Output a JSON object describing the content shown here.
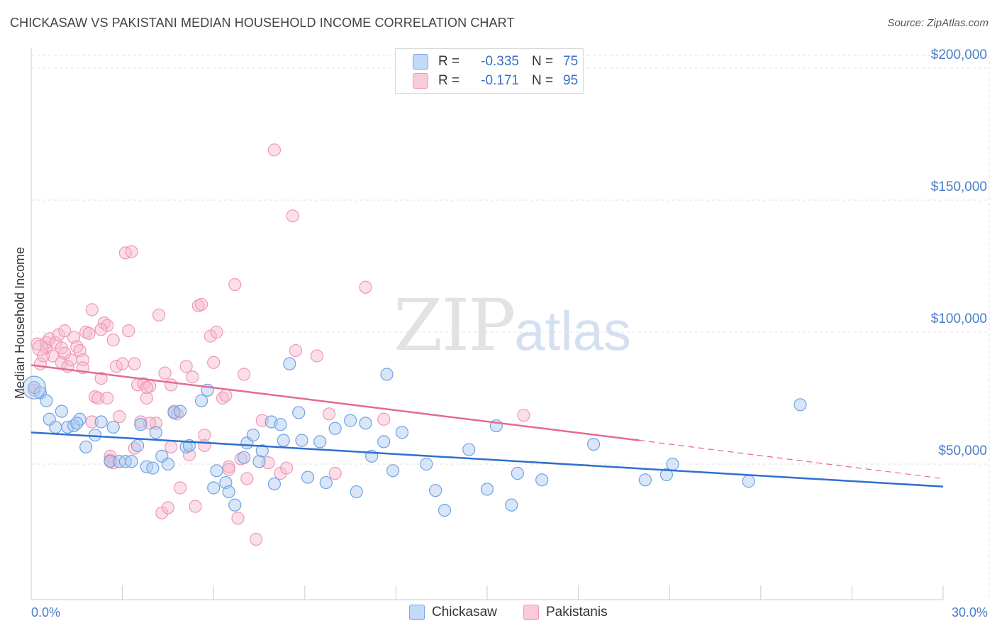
{
  "title": "CHICKASAW VS PAKISTANI MEDIAN HOUSEHOLD INCOME CORRELATION CHART",
  "source": "Source: ZipAtlas.com",
  "watermark": {
    "zip": "ZIP",
    "atlas": "atlas"
  },
  "legend": {
    "rows": [
      {
        "r_label": "R =",
        "r_value": "-0.335",
        "n_label": "N =",
        "n_value": "75",
        "color": "#a8c8f0"
      },
      {
        "r_label": "R =",
        "r_value": "-0.171",
        "n_label": "N =",
        "n_value": "95",
        "color": "#f6b8cc"
      }
    ]
  },
  "chart_data": {
    "type": "scatter",
    "title": "CHICKASAW VS PAKISTANI MEDIAN HOUSEHOLD INCOME CORRELATION CHART",
    "xlabel": "",
    "ylabel": "Median Household Income",
    "xlim": [
      0,
      30
    ],
    "ylim": [
      0,
      215000
    ],
    "x_tick_labels": [
      "0.0%",
      "30.0%"
    ],
    "y_ticks": [
      {
        "value": 50000,
        "label": "$50,000"
      },
      {
        "value": 100000,
        "label": "$100,000"
      },
      {
        "value": 150000,
        "label": "$150,000"
      },
      {
        "value": 200000,
        "label": "$200,000"
      }
    ],
    "grid": true,
    "legend_position": "top-center",
    "series": [
      {
        "name": "Chickasaw",
        "color": "#6fa3e3",
        "fill": "#a8c8f0",
        "trend": {
          "x": [
            0,
            30
          ],
          "y": [
            62000,
            41500
          ],
          "color": "#2f6fd0"
        },
        "points": [
          [
            0.1,
            79000
          ],
          [
            0.3,
            77000
          ],
          [
            0.5,
            74000
          ],
          [
            0.6,
            67000
          ],
          [
            0.8,
            64000
          ],
          [
            1.0,
            70000
          ],
          [
            1.2,
            64000
          ],
          [
            1.4,
            64500
          ],
          [
            1.6,
            67000
          ],
          [
            1.8,
            56500
          ],
          [
            2.1,
            61000
          ],
          [
            2.3,
            66000
          ],
          [
            2.6,
            51000
          ],
          [
            2.7,
            64000
          ],
          [
            2.9,
            51000
          ],
          [
            3.1,
            51000
          ],
          [
            3.3,
            51000
          ],
          [
            3.5,
            57000
          ],
          [
            3.6,
            65000
          ],
          [
            3.8,
            49000
          ],
          [
            4.0,
            48500
          ],
          [
            4.1,
            62000
          ],
          [
            4.3,
            53000
          ],
          [
            4.5,
            50000
          ],
          [
            4.7,
            69500
          ],
          [
            4.9,
            70000
          ],
          [
            5.1,
            56500
          ],
          [
            5.2,
            57000
          ],
          [
            5.6,
            74000
          ],
          [
            5.8,
            78000
          ],
          [
            6.0,
            41000
          ],
          [
            6.1,
            47500
          ],
          [
            6.4,
            43000
          ],
          [
            6.5,
            39500
          ],
          [
            6.7,
            34500
          ],
          [
            7.0,
            52500
          ],
          [
            7.1,
            58000
          ],
          [
            7.3,
            61000
          ],
          [
            7.5,
            51000
          ],
          [
            7.6,
            55000
          ],
          [
            7.9,
            66000
          ],
          [
            8.0,
            42500
          ],
          [
            8.2,
            65000
          ],
          [
            8.3,
            59000
          ],
          [
            8.5,
            88000
          ],
          [
            8.8,
            69500
          ],
          [
            8.9,
            59000
          ],
          [
            9.1,
            45000
          ],
          [
            9.5,
            58500
          ],
          [
            9.7,
            43000
          ],
          [
            10.0,
            63500
          ],
          [
            10.5,
            66500
          ],
          [
            10.7,
            39500
          ],
          [
            11.0,
            65500
          ],
          [
            11.2,
            53000
          ],
          [
            11.6,
            58500
          ],
          [
            11.7,
            84000
          ],
          [
            11.9,
            47500
          ],
          [
            12.2,
            62000
          ],
          [
            13.0,
            50000
          ],
          [
            13.3,
            40000
          ],
          [
            13.6,
            32500
          ],
          [
            14.4,
            55500
          ],
          [
            15.0,
            40500
          ],
          [
            15.3,
            64500
          ],
          [
            15.8,
            34500
          ],
          [
            16.0,
            46500
          ],
          [
            16.8,
            44000
          ],
          [
            18.5,
            57500
          ],
          [
            20.2,
            44000
          ],
          [
            20.9,
            46000
          ],
          [
            21.1,
            50000
          ],
          [
            23.6,
            43500
          ],
          [
            25.3,
            72500
          ],
          [
            1.5,
            65500
          ]
        ]
      },
      {
        "name": "Pakistanis",
        "color": "#ef98b5",
        "fill": "#f6b8cc",
        "trend": {
          "x": [
            0,
            20
          ],
          "y": [
            87500,
            59000
          ],
          "color": "#e46a93"
        },
        "trend_dashed": {
          "x": [
            20,
            30
          ],
          "y": [
            59000,
            44500
          ]
        },
        "points": [
          [
            0.1,
            78000
          ],
          [
            0.2,
            95500
          ],
          [
            0.3,
            88000
          ],
          [
            0.5,
            94000
          ],
          [
            0.5,
            96000
          ],
          [
            0.6,
            97500
          ],
          [
            0.7,
            91000
          ],
          [
            0.8,
            96000
          ],
          [
            0.9,
            99000
          ],
          [
            1.0,
            94000
          ],
          [
            1.0,
            88500
          ],
          [
            1.1,
            100500
          ],
          [
            1.2,
            87000
          ],
          [
            1.3,
            89500
          ],
          [
            1.4,
            98000
          ],
          [
            1.5,
            94500
          ],
          [
            1.6,
            93000
          ],
          [
            1.7,
            89500
          ],
          [
            1.7,
            86500
          ],
          [
            1.8,
            100000
          ],
          [
            1.9,
            99500
          ],
          [
            2.0,
            66000
          ],
          [
            2.0,
            108500
          ],
          [
            2.1,
            75500
          ],
          [
            2.2,
            75000
          ],
          [
            2.3,
            82500
          ],
          [
            2.4,
            103500
          ],
          [
            2.5,
            102500
          ],
          [
            2.5,
            75000
          ],
          [
            2.6,
            53000
          ],
          [
            2.7,
            50500
          ],
          [
            2.7,
            97000
          ],
          [
            2.8,
            87000
          ],
          [
            2.9,
            68000
          ],
          [
            3.0,
            88000
          ],
          [
            3.1,
            130000
          ],
          [
            3.2,
            100500
          ],
          [
            3.3,
            130500
          ],
          [
            3.4,
            88000
          ],
          [
            3.5,
            80000
          ],
          [
            3.6,
            66000
          ],
          [
            3.7,
            80500
          ],
          [
            3.8,
            75000
          ],
          [
            3.9,
            79500
          ],
          [
            4.1,
            65500
          ],
          [
            4.2,
            106500
          ],
          [
            4.3,
            31500
          ],
          [
            4.4,
            84500
          ],
          [
            4.5,
            33500
          ],
          [
            4.6,
            80000
          ],
          [
            4.7,
            70000
          ],
          [
            4.8,
            69000
          ],
          [
            4.9,
            41000
          ],
          [
            5.1,
            87000
          ],
          [
            5.2,
            53500
          ],
          [
            5.3,
            83000
          ],
          [
            5.4,
            34000
          ],
          [
            5.5,
            110000
          ],
          [
            5.6,
            110500
          ],
          [
            5.7,
            61000
          ],
          [
            5.9,
            98500
          ],
          [
            6.0,
            88500
          ],
          [
            6.1,
            100000
          ],
          [
            6.3,
            75000
          ],
          [
            6.4,
            76000
          ],
          [
            6.5,
            49000
          ],
          [
            6.7,
            118000
          ],
          [
            6.8,
            29500
          ],
          [
            6.9,
            52000
          ],
          [
            7.0,
            84000
          ],
          [
            7.1,
            44500
          ],
          [
            7.4,
            21500
          ],
          [
            7.6,
            66500
          ],
          [
            7.8,
            50500
          ],
          [
            8.0,
            169000
          ],
          [
            8.2,
            46500
          ],
          [
            8.4,
            48500
          ],
          [
            8.6,
            144000
          ],
          [
            8.7,
            93000
          ],
          [
            9.4,
            91000
          ],
          [
            9.8,
            69000
          ],
          [
            10.0,
            46500
          ],
          [
            11.0,
            117000
          ],
          [
            11.6,
            67000
          ],
          [
            3.4,
            56000
          ],
          [
            4.6,
            56500
          ],
          [
            5.7,
            57000
          ],
          [
            2.6,
            51500
          ],
          [
            3.9,
            65500
          ],
          [
            6.5,
            48000
          ],
          [
            16.2,
            68500
          ],
          [
            0.4,
            91000
          ],
          [
            1.1,
            92000
          ],
          [
            2.3,
            101000
          ],
          [
            3.8,
            79000
          ]
        ]
      }
    ]
  }
}
